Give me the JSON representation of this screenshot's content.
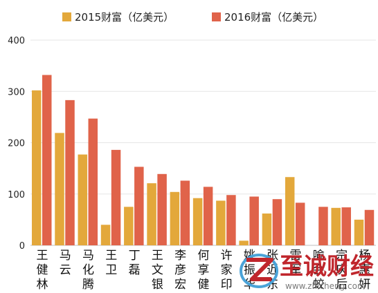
{
  "chart_data": {
    "type": "bar",
    "categories": [
      "王健林",
      "马云",
      "马化腾",
      "王卫",
      "丁磊",
      "王文银",
      "李彦宏",
      "何享健",
      "许家印",
      "姚振华",
      "张近东",
      "雷军",
      "喻会蛟",
      "宗庆后",
      "杨惠妍"
    ],
    "series": [
      {
        "name": "2015财富（亿美元）",
        "color": "#e3a83b",
        "values": [
          302,
          219,
          177,
          40,
          75,
          121,
          104,
          92,
          87,
          9,
          62,
          133,
          0,
          73,
          50
        ]
      },
      {
        "name": "2016财富（亿美元）",
        "color": "#e0634a",
        "values": [
          332,
          283,
          247,
          186,
          153,
          139,
          126,
          114,
          98,
          95,
          90,
          83,
          75,
          74,
          69
        ]
      }
    ],
    "yticks": [
      0,
      100,
      200,
      300,
      400
    ],
    "ylim": [
      0,
      400
    ],
    "legend_position": "top"
  },
  "watermark": {
    "text": "至诚财经",
    "url_text": "www.zhicheng.com",
    "colors": {
      "primary": "#c0262c",
      "accent": "#4aa3d8"
    }
  }
}
